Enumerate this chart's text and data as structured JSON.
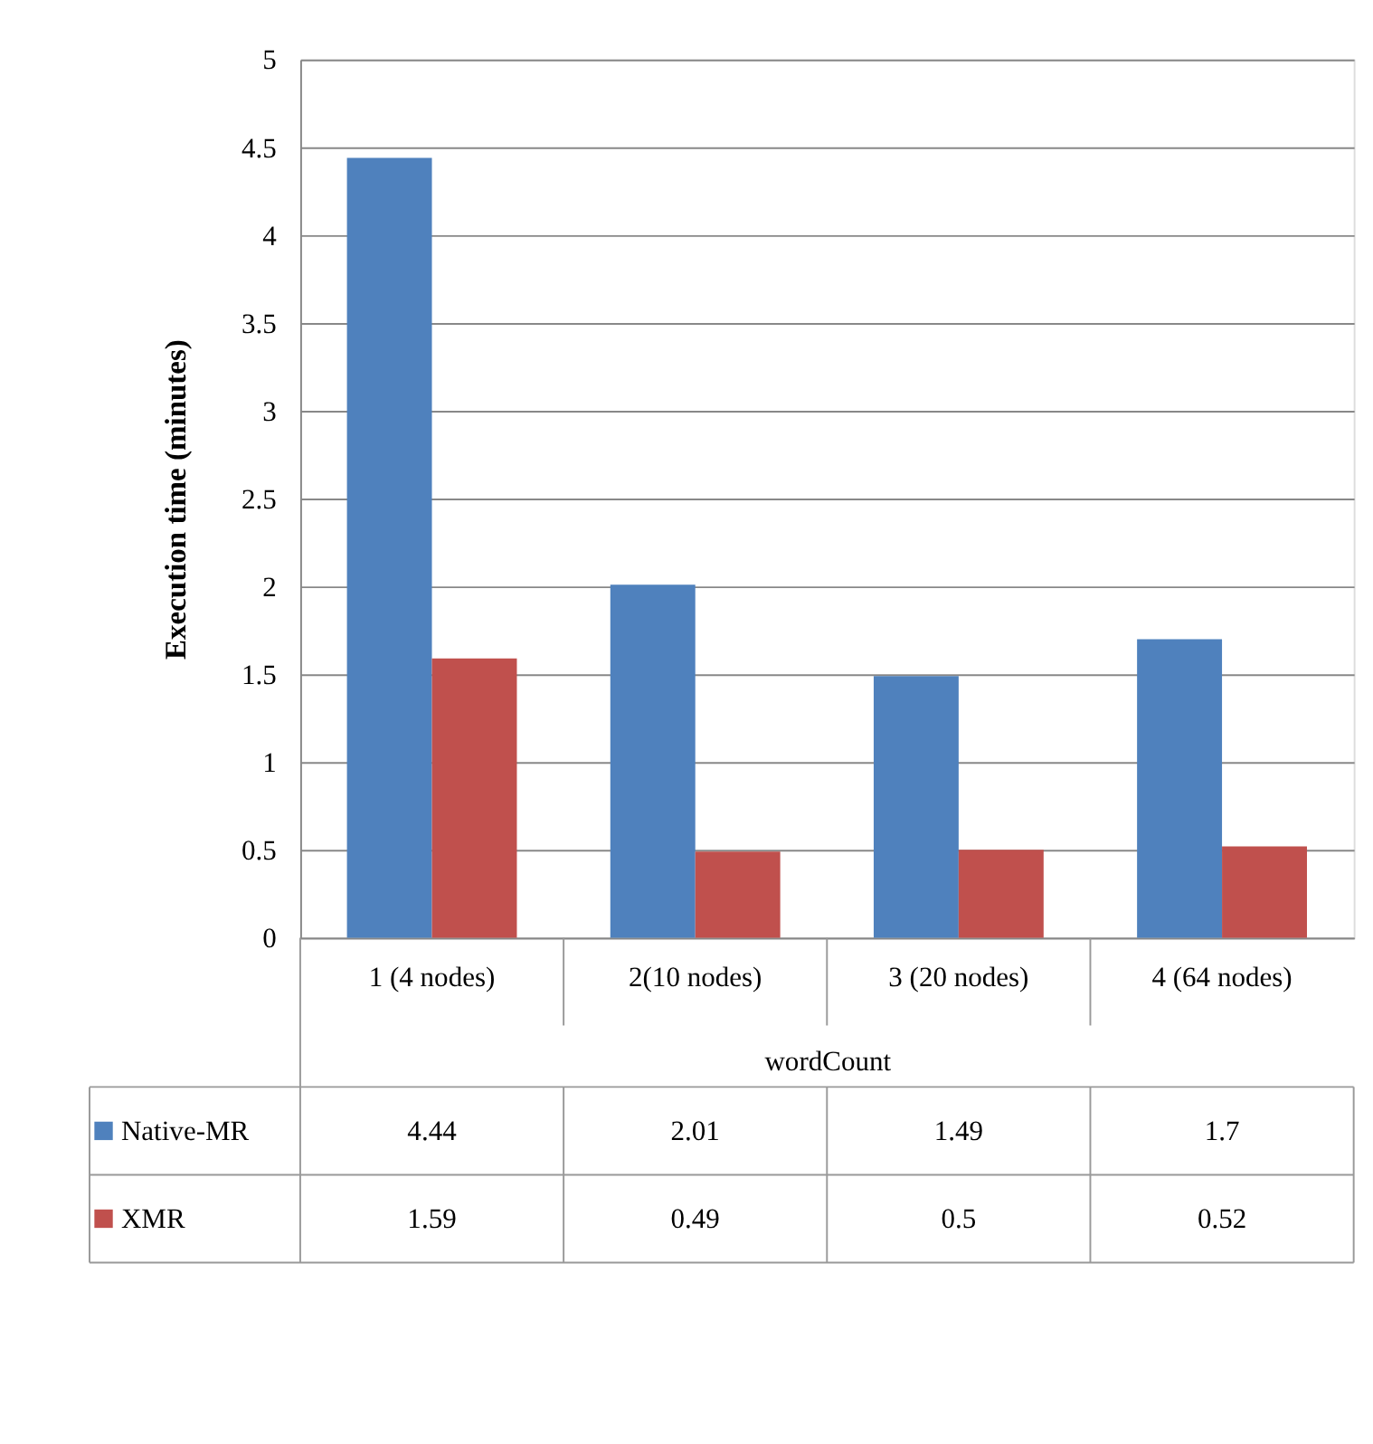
{
  "chart_data": {
    "type": "bar",
    "ylabel": "Execution time (minutes)",
    "xlabel": "wordCount",
    "categories": [
      "1 (4 nodes)",
      "2(10 nodes)",
      "3 (20 nodes)",
      "4 (64 nodes)"
    ],
    "series": [
      {
        "name": "Native-MR",
        "color": "#4f81bd",
        "values": [
          4.44,
          2.01,
          1.49,
          1.7
        ]
      },
      {
        "name": "XMR",
        "color": "#c0504d",
        "values": [
          1.59,
          0.49,
          0.5,
          0.52
        ]
      }
    ],
    "ylim": [
      0,
      5
    ],
    "yticks": [
      0,
      0.5,
      1,
      1.5,
      2,
      2.5,
      3,
      3.5,
      4,
      4.5,
      5
    ],
    "grid": "y",
    "data_labels": true,
    "legend": "bottom left"
  }
}
